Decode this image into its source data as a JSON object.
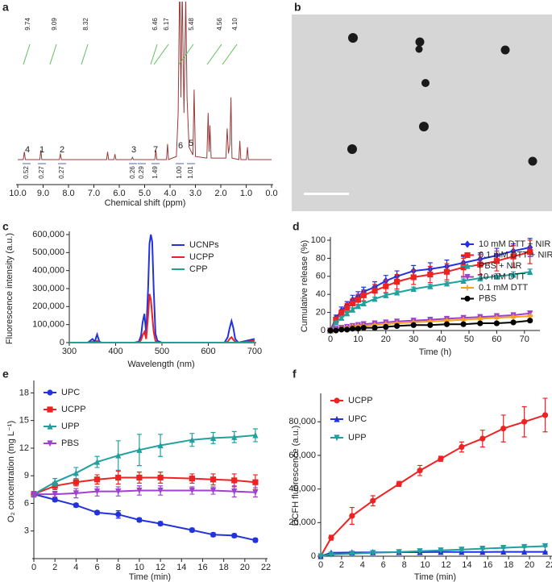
{
  "chart_data": [
    {
      "type": "spectrum",
      "panel": "a",
      "xlabel": "Chemical shift (ppm)",
      "x": [
        10.0,
        9.78,
        9.74,
        9.7,
        9.13,
        9.09,
        9.05,
        8.36,
        8.32,
        8.28,
        6.5,
        6.46,
        6.42,
        6.21,
        6.17,
        6.13,
        5.52,
        5.48,
        5.44,
        4.6,
        4.56,
        4.52,
        4.14,
        4.1,
        4.06,
        3.75,
        3.68,
        3.62,
        3.57,
        3.52,
        3.45,
        3.38,
        3.33,
        3.25,
        3.1,
        3.05,
        3.0,
        2.55,
        2.5,
        2.46,
        2.43,
        2.38,
        1.8,
        1.75,
        1.7,
        1.64,
        1.6,
        1.56,
        1.29,
        1.25,
        1.21,
        0.99,
        0.95,
        0.91,
        0.0
      ],
      "series": [
        {
          "color": "#9b3a3a",
          "values": [
            0,
            0,
            5,
            0,
            0,
            6,
            0,
            0,
            4,
            0,
            0,
            5,
            0,
            0,
            3.5,
            0,
            0,
            1.5,
            0,
            0,
            6,
            0,
            0,
            10,
            0,
            2,
            30,
            120,
            40,
            110,
            30,
            105,
            40,
            8,
            3,
            45,
            2,
            1,
            30,
            5,
            22,
            1,
            1,
            20,
            4,
            10,
            40,
            1,
            0,
            12,
            0,
            0,
            8,
            0,
            0
          ]
        }
      ],
      "xlim": [
        10,
        0
      ],
      "ylim": [
        0,
        100
      ],
      "xticks": [
        {
          "value": 10,
          "label": "10.0"
        },
        {
          "value": 9,
          "label": "9.0"
        },
        {
          "value": 8,
          "label": "8.0"
        },
        {
          "value": 7,
          "label": "7.0"
        },
        {
          "value": 6,
          "label": "6.0"
        },
        {
          "value": 5,
          "label": "5.0"
        },
        {
          "value": 4,
          "label": "4.0"
        },
        {
          "value": 3,
          "label": "3.0"
        },
        {
          "value": 2,
          "label": "2.0"
        },
        {
          "value": 1,
          "label": "1.0"
        },
        {
          "value": 0,
          "label": "0.0"
        }
      ],
      "peak_labels": [
        "9.74",
        "9.09",
        "8.32",
        "6.46",
        "6.17",
        "5.48",
        "4.56",
        "4.10"
      ],
      "peak_numbers": [
        "4",
        "1",
        "2",
        "3",
        "7",
        "6",
        "5"
      ],
      "integrals": [
        "0.52",
        "0.27",
        "0.27",
        "0.26",
        "0.29",
        "1.49",
        "1.00",
        "1.01"
      ]
    },
    {
      "type": "line",
      "panel": "c",
      "xlabel": "Wavelength (nm)",
      "ylabel": "Fluorescence intensity (a.u.)",
      "x": [
        300,
        340,
        350,
        355,
        360,
        365,
        370,
        400,
        440,
        450,
        455,
        458,
        462,
        466,
        470,
        473,
        476,
        479,
        482,
        486,
        490,
        500,
        560,
        620,
        635,
        642,
        646,
        650,
        654,
        658,
        665,
        700
      ],
      "series": [
        {
          "name": "UCNPs",
          "color": "#2233dd",
          "values": [
            0,
            0,
            20000,
            5000,
            45000,
            5000,
            0,
            0,
            0,
            5000,
            40000,
            110000,
            160000,
            50000,
            300000,
            550000,
            600000,
            560000,
            300000,
            50000,
            10000,
            0,
            0,
            0,
            0,
            30000,
            80000,
            120000,
            80000,
            20000,
            0,
            20000
          ]
        },
        {
          "name": "UCPP",
          "color": "#ee2222",
          "values": [
            0,
            0,
            5000,
            0,
            10000,
            0,
            0,
            0,
            0,
            0,
            15000,
            40000,
            60000,
            20000,
            150000,
            270000,
            240000,
            150000,
            60000,
            10000,
            0,
            0,
            0,
            0,
            0,
            5000,
            20000,
            30000,
            15000,
            5000,
            0,
            10000
          ]
        },
        {
          "name": "CPP",
          "color": "#22a090",
          "values": [
            0,
            0,
            0,
            0,
            0,
            0,
            0,
            0,
            0,
            0,
            0,
            0,
            0,
            0,
            0,
            0,
            0,
            0,
            0,
            0,
            0,
            0,
            0,
            0,
            0,
            0,
            0,
            0,
            0,
            0,
            0,
            0
          ]
        }
      ],
      "xlim": [
        300,
        700
      ],
      "ylim": [
        0,
        600000
      ],
      "xticks": [
        300,
        400,
        500,
        600,
        700
      ],
      "yticks": [
        0,
        {
          "value": 100000,
          "label": "100,000"
        },
        {
          "value": 200000,
          "label": "200,000"
        },
        {
          "value": 300000,
          "label": "300,000"
        },
        {
          "value": 400000,
          "label": "400,000"
        },
        {
          "value": 500000,
          "label": "500,000"
        },
        {
          "value": 600000,
          "label": "600,000"
        }
      ],
      "legend": "upper right"
    },
    {
      "type": "errorline",
      "panel": "d",
      "xlabel": "Time (h)",
      "ylabel": "Cumulative release (%)",
      "x": [
        0,
        2,
        4,
        6,
        8,
        10,
        12,
        16,
        20,
        24,
        30,
        36,
        42,
        48,
        54,
        60,
        66,
        72
      ],
      "series": [
        {
          "name": "10 mM DTT + NIR",
          "color": "#2233dd",
          "marker": "diamond",
          "values": [
            0,
            14,
            22,
            28,
            34,
            38,
            43,
            48,
            55,
            60,
            66,
            68,
            71,
            75,
            79,
            83,
            88,
            92
          ],
          "errors": [
            0,
            3,
            4,
            4,
            5,
            5,
            5,
            6,
            6,
            6,
            6,
            7,
            7,
            7,
            7,
            8,
            8,
            10
          ]
        },
        {
          "name": "0.1 mM DTT + NIR",
          "color": "#ee2222",
          "marker": "square",
          "values": [
            0,
            12,
            19,
            25,
            30,
            34,
            39,
            44,
            49,
            54,
            59,
            62,
            65,
            70,
            73,
            77,
            82,
            87
          ],
          "errors": [
            0,
            3,
            4,
            5,
            5,
            6,
            6,
            7,
            7,
            8,
            8,
            9,
            9,
            10,
            11,
            11,
            12,
            13
          ]
        },
        {
          "name": "PBS + NIR",
          "color": "#22a0a0",
          "marker": "triangle",
          "values": [
            0,
            9,
            14,
            19,
            23,
            27,
            30,
            35,
            39,
            42,
            46,
            49,
            52,
            55,
            58,
            60,
            62,
            65
          ],
          "errors": [
            0,
            1,
            2,
            2,
            2,
            2,
            2,
            2,
            2,
            2,
            2,
            2,
            2,
            2,
            3,
            3,
            3,
            3
          ]
        },
        {
          "name": "10 mM DTT",
          "color": "#a040d0",
          "marker": "triangle-down",
          "values": [
            0,
            2,
            3,
            4,
            5,
            6,
            7,
            8,
            9,
            10,
            11,
            12,
            13,
            14,
            15,
            16,
            17,
            19
          ],
          "errors": [
            0,
            1,
            1,
            1,
            1,
            1,
            1,
            1,
            1,
            1,
            1,
            1,
            1,
            1,
            1,
            1,
            1,
            2
          ]
        },
        {
          "name": "0.1 mM DTT",
          "color": "#f5a020",
          "marker": "plus",
          "values": [
            0,
            1,
            2,
            3,
            4,
            5,
            5,
            6,
            7,
            8,
            9,
            10,
            11,
            12,
            13,
            14,
            15,
            16
          ],
          "errors": [
            0,
            1,
            1,
            1,
            1,
            1,
            1,
            1,
            1,
            1,
            1,
            1,
            1,
            1,
            1,
            1,
            1,
            1
          ]
        },
        {
          "name": "PBS",
          "color": "#000000",
          "marker": "circle",
          "values": [
            0,
            0,
            1,
            1,
            2,
            2,
            3,
            3,
            4,
            5,
            6,
            6,
            7,
            7,
            8,
            8,
            9,
            11
          ],
          "errors": [
            0.5,
            0.5,
            0.5,
            0.5,
            0.5,
            0.5,
            0.5,
            0.5,
            0.5,
            0.5,
            0.5,
            0.5,
            0.5,
            0.5,
            0.5,
            0.5,
            0.5,
            0.5
          ]
        }
      ],
      "xlim": [
        0,
        75
      ],
      "ylim": [
        0,
        100
      ],
      "xticks": [
        0,
        10,
        20,
        30,
        40,
        50,
        60,
        70
      ],
      "yticks": [
        0,
        20,
        40,
        60,
        80,
        100
      ],
      "legend": "upper right"
    },
    {
      "type": "errorline",
      "panel": "e",
      "xlabel": "Time (min)",
      "ylabel": "O₂ concentration (mg L⁻¹)",
      "x": [
        0,
        2,
        4,
        6,
        8,
        10,
        12,
        15,
        17,
        19,
        21
      ],
      "series": [
        {
          "name": "UPC",
          "color": "#2233dd",
          "marker": "circle",
          "values": [
            7,
            6.4,
            5.8,
            5.0,
            4.8,
            4.2,
            3.8,
            3.1,
            2.6,
            2.5,
            2.0
          ],
          "errors": [
            0.2,
            0.2,
            0.2,
            0.2,
            0.4,
            0.2,
            0.2,
            0.2,
            0.2,
            0.2,
            0.2
          ]
        },
        {
          "name": "UCPP",
          "color": "#ee2222",
          "marker": "square",
          "values": [
            7,
            7.9,
            8.3,
            8.6,
            8.8,
            8.8,
            8.8,
            8.7,
            8.6,
            8.5,
            8.3
          ],
          "errors": [
            0.3,
            0.4,
            0.4,
            0.5,
            0.7,
            0.6,
            0.6,
            0.5,
            0.6,
            0.7,
            0.8
          ]
        },
        {
          "name": "UPP",
          "color": "#22a0a0",
          "marker": "triangle",
          "values": [
            7,
            8.3,
            9.3,
            10.5,
            11.2,
            11.8,
            12.3,
            12.9,
            13.1,
            13.2,
            13.4
          ],
          "errors": [
            0.3,
            0.4,
            0.6,
            0.6,
            1.6,
            1.7,
            1.2,
            0.7,
            0.6,
            0.6,
            0.7
          ]
        },
        {
          "name": "PBS",
          "color": "#a040d0",
          "marker": "triangle-down",
          "values": [
            7,
            7.0,
            7.1,
            7.3,
            7.3,
            7.4,
            7.4,
            7.4,
            7.4,
            7.3,
            7.2
          ],
          "errors": [
            0.3,
            0.3,
            0.5,
            0.5,
            0.5,
            0.5,
            0.5,
            0.4,
            0.4,
            0.6,
            0.5
          ]
        }
      ],
      "xlim": [
        0,
        22
      ],
      "ylim": [
        0,
        19
      ],
      "xticks": [
        0,
        2,
        4,
        6,
        8,
        10,
        12,
        14,
        16,
        18,
        20,
        22
      ],
      "yticks": [
        3,
        6,
        9,
        12,
        15,
        18
      ],
      "legend": "upper left"
    },
    {
      "type": "errorline",
      "panel": "f",
      "xlabel": "Time (min)",
      "ylabel": "DCFH fluorescence (a.u.)",
      "x": [
        0,
        1,
        3,
        5,
        7.5,
        9.5,
        11.5,
        13.5,
        15.5,
        17.5,
        19.5,
        21.5
      ],
      "series": [
        {
          "name": "UCPP",
          "color": "#ee2222",
          "marker": "circle",
          "values": [
            0,
            11000,
            24000,
            33000,
            43000,
            51000,
            58000,
            65000,
            70000,
            76000,
            80000,
            84000
          ],
          "errors": [
            0,
            1500,
            5000,
            3000,
            1500,
            3000,
            1500,
            3000,
            5000,
            8000,
            9000,
            10000
          ]
        },
        {
          "name": "UPC",
          "color": "#2233dd",
          "marker": "triangle",
          "values": [
            0,
            2000,
            2200,
            2300,
            2400,
            2400,
            2500,
            2500,
            2500,
            2600,
            2600,
            2600
          ],
          "errors": [
            0,
            200,
            200,
            200,
            200,
            200,
            200,
            200,
            200,
            200,
            200,
            200
          ]
        },
        {
          "name": "UPP",
          "color": "#22a0a0",
          "marker": "triangle-down",
          "values": [
            0,
            1000,
            1500,
            2000,
            2500,
            3000,
            3500,
            4000,
            4500,
            5000,
            5500,
            6000
          ],
          "errors": [
            0,
            300,
            300,
            300,
            300,
            300,
            300,
            300,
            300,
            300,
            300,
            300
          ]
        }
      ],
      "xlim": [
        0,
        22
      ],
      "ylim": [
        0,
        95000
      ],
      "xticks": [
        0,
        2,
        4,
        6,
        8,
        10,
        12,
        14,
        16,
        18,
        20,
        22
      ],
      "yticks": [
        0,
        {
          "value": 20000,
          "label": "20,000"
        },
        {
          "value": 40000,
          "label": "40,000"
        },
        {
          "value": 60000,
          "label": "60,000"
        },
        {
          "value": 80000,
          "label": "80,000"
        }
      ],
      "legend": "upper left"
    }
  ],
  "micrograph": {
    "panel": "b"
  }
}
